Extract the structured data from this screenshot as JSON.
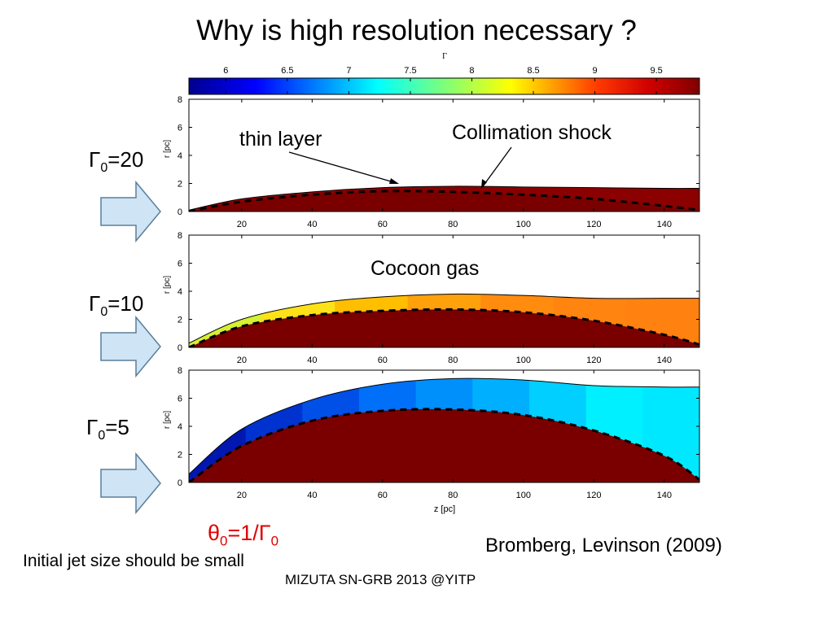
{
  "slide": {
    "title": "Why is high resolution necessary ?",
    "theta_prefix": "θ",
    "theta_sub": "0",
    "theta_mid": "=1/Γ",
    "theta_sub2": "0",
    "reference": "Bromberg, Levinson (2009)",
    "note": "Initial jet size should be small",
    "footer": "MIZUTA SN-GRB 2013 @YITP"
  },
  "colorbar": {
    "label": "Γ",
    "ticks": [
      "6",
      "6.5",
      "7",
      "7.5",
      "8",
      "8.5",
      "9",
      "9.5"
    ],
    "tick_values": [
      6,
      6.5,
      7,
      7.5,
      8,
      8.5,
      9,
      9.5
    ],
    "range": [
      5.7,
      9.85
    ]
  },
  "axes": {
    "xlabel": "z [pc]",
    "ylabel": "r [pc]",
    "xticks": [
      "20",
      "40",
      "60",
      "80",
      "100",
      "120",
      "140"
    ],
    "yticks": [
      "0",
      "2",
      "4",
      "6",
      "8"
    ],
    "xlim": [
      5,
      150
    ],
    "ylim": [
      0,
      8
    ]
  },
  "panels": [
    {
      "gamma_symbol": "Γ",
      "gamma_sub": "0",
      "gamma_value": "=20",
      "outer_z": [
        5,
        20,
        40,
        60,
        80,
        100,
        120,
        140,
        150
      ],
      "outer_r": [
        0.1,
        0.9,
        1.4,
        1.7,
        1.8,
        1.75,
        1.7,
        1.65,
        1.65
      ],
      "shock_z": [
        5,
        20,
        40,
        60,
        80,
        100,
        120,
        140,
        150
      ],
      "shock_r": [
        0,
        0.7,
        1.2,
        1.45,
        1.4,
        1.2,
        0.9,
        0.4,
        0.1
      ],
      "cocoon_colors": [
        "#8b0000"
      ],
      "annotations": [
        "thin layer",
        "Collimation shock"
      ]
    },
    {
      "gamma_symbol": "Γ",
      "gamma_sub": "0",
      "gamma_value": "=10",
      "outer_z": [
        5,
        20,
        40,
        60,
        80,
        100,
        120,
        140,
        150
      ],
      "outer_r": [
        0.3,
        2.0,
        3.1,
        3.6,
        3.8,
        3.7,
        3.5,
        3.5,
        3.5
      ],
      "shock_z": [
        5,
        20,
        40,
        60,
        80,
        100,
        120,
        140,
        150
      ],
      "shock_r": [
        0,
        1.5,
        2.3,
        2.6,
        2.7,
        2.5,
        1.9,
        0.9,
        0.2
      ],
      "cocoon_colors": [
        "#d6f032",
        "#fde218",
        "#ffbf00",
        "#ffa10a",
        "#ff8c0f",
        "#ff8410",
        "#ff8210"
      ],
      "annotations": [
        "Cocoon gas"
      ]
    },
    {
      "gamma_symbol": "Γ",
      "gamma_sub": "0",
      "gamma_value": "=5",
      "outer_z": [
        5,
        20,
        40,
        60,
        80,
        100,
        120,
        140,
        150
      ],
      "outer_r": [
        0.6,
        3.8,
        5.9,
        7.0,
        7.4,
        7.3,
        6.9,
        6.8,
        6.8
      ],
      "shock_z": [
        5,
        20,
        40,
        60,
        80,
        100,
        120,
        140,
        150
      ],
      "shock_r": [
        0,
        2.6,
        4.4,
        5.1,
        5.2,
        4.8,
        3.7,
        1.9,
        0.2
      ],
      "cocoon_colors": [
        "#0018b0",
        "#0032d0",
        "#0050e8",
        "#0070f8",
        "#0090fc",
        "#00b0ff",
        "#00cfff",
        "#00f0ff",
        "#00e8ff"
      ],
      "annotations": []
    }
  ]
}
